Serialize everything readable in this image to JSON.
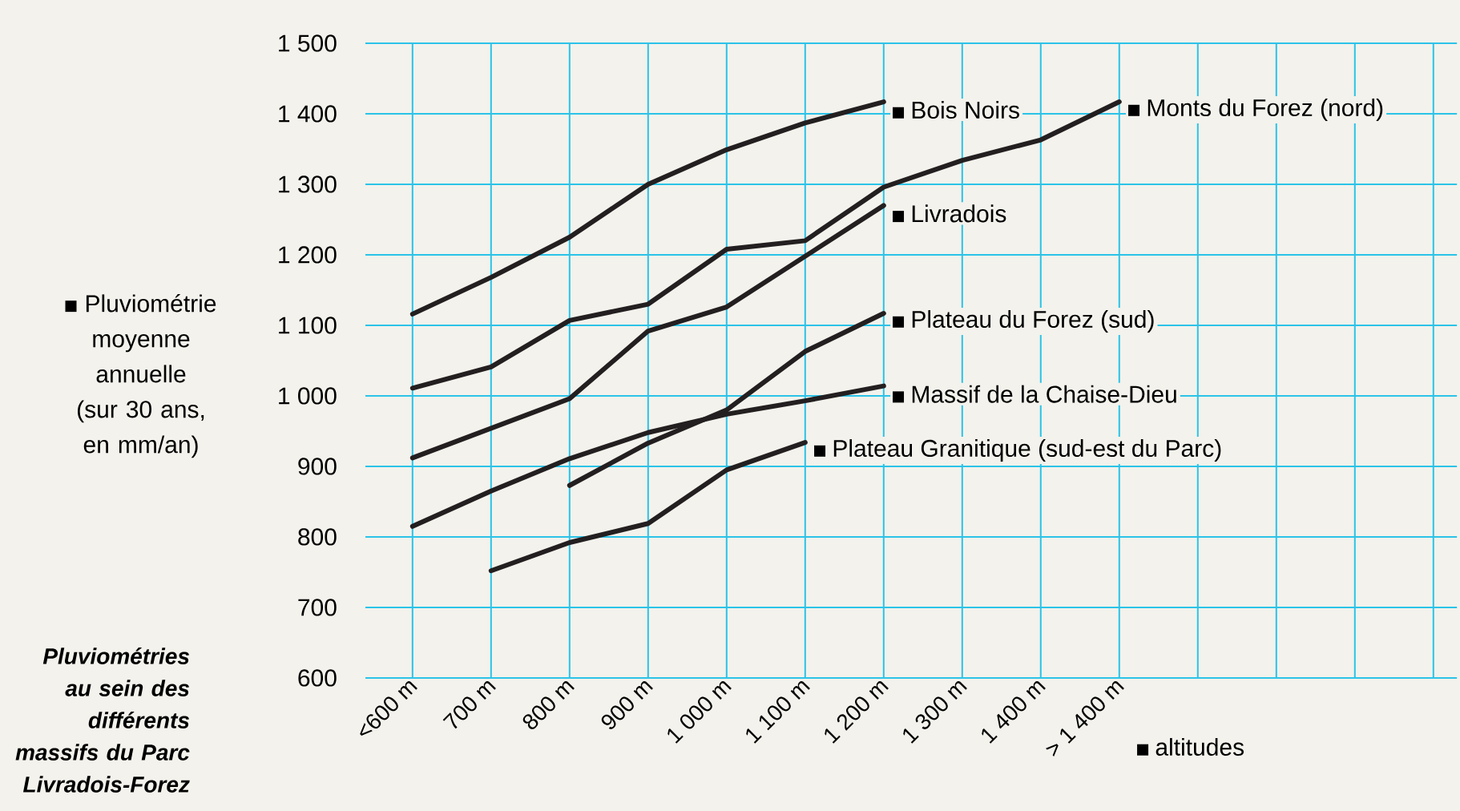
{
  "chart_data": {
    "type": "line",
    "title": "Pluviométries au sein des différents massifs du Parc Livradois-Forez",
    "ylabel": "Pluviométrie moyenne annuelle (sur 30 ans, en mm/an)",
    "xlabel": "altitudes",
    "categories": [
      "<600 m",
      "700 m",
      "800 m",
      "900 m",
      "1 000 m",
      "1 100 m",
      "1 200 m",
      "1 300 m",
      "1 400 m",
      "> 1 400 m",
      null,
      null,
      null,
      null
    ],
    "series": [
      {
        "name": "Bois Noirs",
        "color": "#231f20",
        "values": [
          1116,
          1168,
          1225,
          1300,
          1349,
          1387,
          1417,
          null,
          null,
          null,
          null,
          null,
          null,
          null
        ]
      },
      {
        "name": "Monts du Forez (nord)",
        "color": "#231f20",
        "values": [
          1011,
          1041,
          1107,
          1130,
          1208,
          1220,
          1296,
          1334,
          1363,
          1417,
          null,
          null,
          null,
          null
        ]
      },
      {
        "name": "Livradois",
        "color": "#231f20",
        "values": [
          912,
          954,
          996,
          1092,
          1126,
          1198,
          1270,
          null,
          null,
          null,
          null,
          null,
          null,
          null
        ]
      },
      {
        "name": "Plateau du Forez (sud)",
        "color": "#231f20",
        "values": [
          null,
          null,
          873,
          933,
          980,
          1063,
          1117,
          null,
          null,
          null,
          null,
          null,
          null,
          null
        ]
      },
      {
        "name": "Massif de la Chaise-Dieu",
        "color": "#231f20",
        "values": [
          815,
          865,
          911,
          948,
          974,
          993,
          1014,
          null,
          null,
          null,
          null,
          null,
          null,
          null
        ]
      },
      {
        "name": "Plateau Granitique (sud-est du Parc)",
        "color": "#231f20",
        "values": [
          null,
          752,
          792,
          819,
          895,
          934,
          null,
          null,
          null,
          null,
          null,
          null,
          null,
          null
        ]
      }
    ],
    "ylim": [
      600,
      1500
    ],
    "yticks": [
      600,
      700,
      800,
      900,
      {
        "value": 1000,
        "label": "1 000"
      },
      {
        "value": 1100,
        "label": "1 100"
      },
      {
        "value": 1200,
        "label": "1 200"
      },
      {
        "value": 1300,
        "label": "1 300"
      },
      {
        "value": 1400,
        "label": "1 400"
      },
      {
        "value": 1500,
        "label": "1 500"
      }
    ],
    "grid": true
  }
}
